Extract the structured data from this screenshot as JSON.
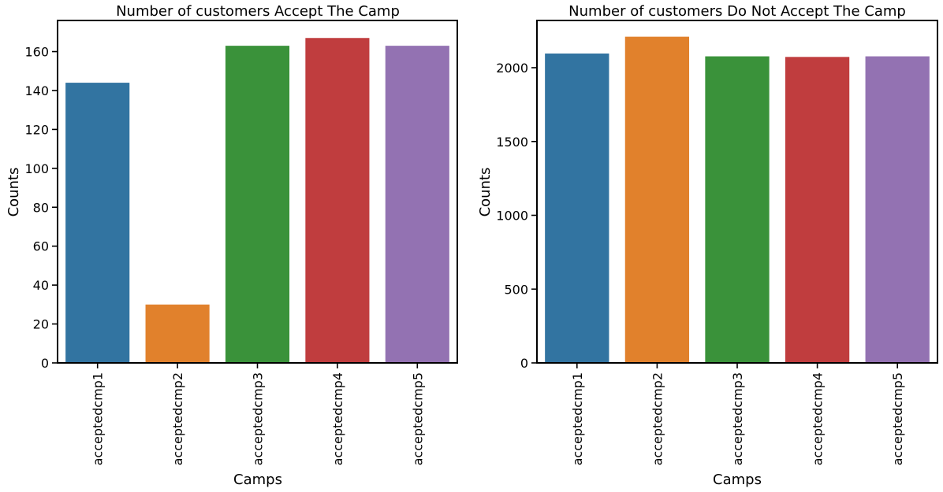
{
  "colors": {
    "palette": [
      "#3274a1",
      "#e1812c",
      "#3a923a",
      "#c03d3e",
      "#9372b2"
    ],
    "axis": "#000000",
    "background": "#ffffff"
  },
  "chart_data": [
    {
      "type": "bar",
      "title": "Number of customers Accept The Camp",
      "xlabel": "Camps",
      "ylabel": "Counts",
      "categories": [
        "acceptedcmp1",
        "acceptedcmp2",
        "acceptedcmp3",
        "acceptedcmp4",
        "acceptedcmp5"
      ],
      "values": [
        144,
        30,
        163,
        167,
        163
      ],
      "ylim": [
        0,
        176
      ],
      "yticks": [
        0,
        20,
        40,
        60,
        80,
        100,
        120,
        140,
        160
      ],
      "grid": false
    },
    {
      "type": "bar",
      "title": "Number of customers Do Not Accept The Camp",
      "xlabel": "Camps",
      "ylabel": "Counts",
      "categories": [
        "acceptedcmp1",
        "acceptedcmp2",
        "acceptedcmp3",
        "acceptedcmp4",
        "acceptedcmp5"
      ],
      "values": [
        2096,
        2210,
        2077,
        2073,
        2077
      ],
      "ylim": [
        0,
        2320
      ],
      "yticks": [
        0,
        500,
        1000,
        1500,
        2000
      ],
      "grid": false
    }
  ]
}
